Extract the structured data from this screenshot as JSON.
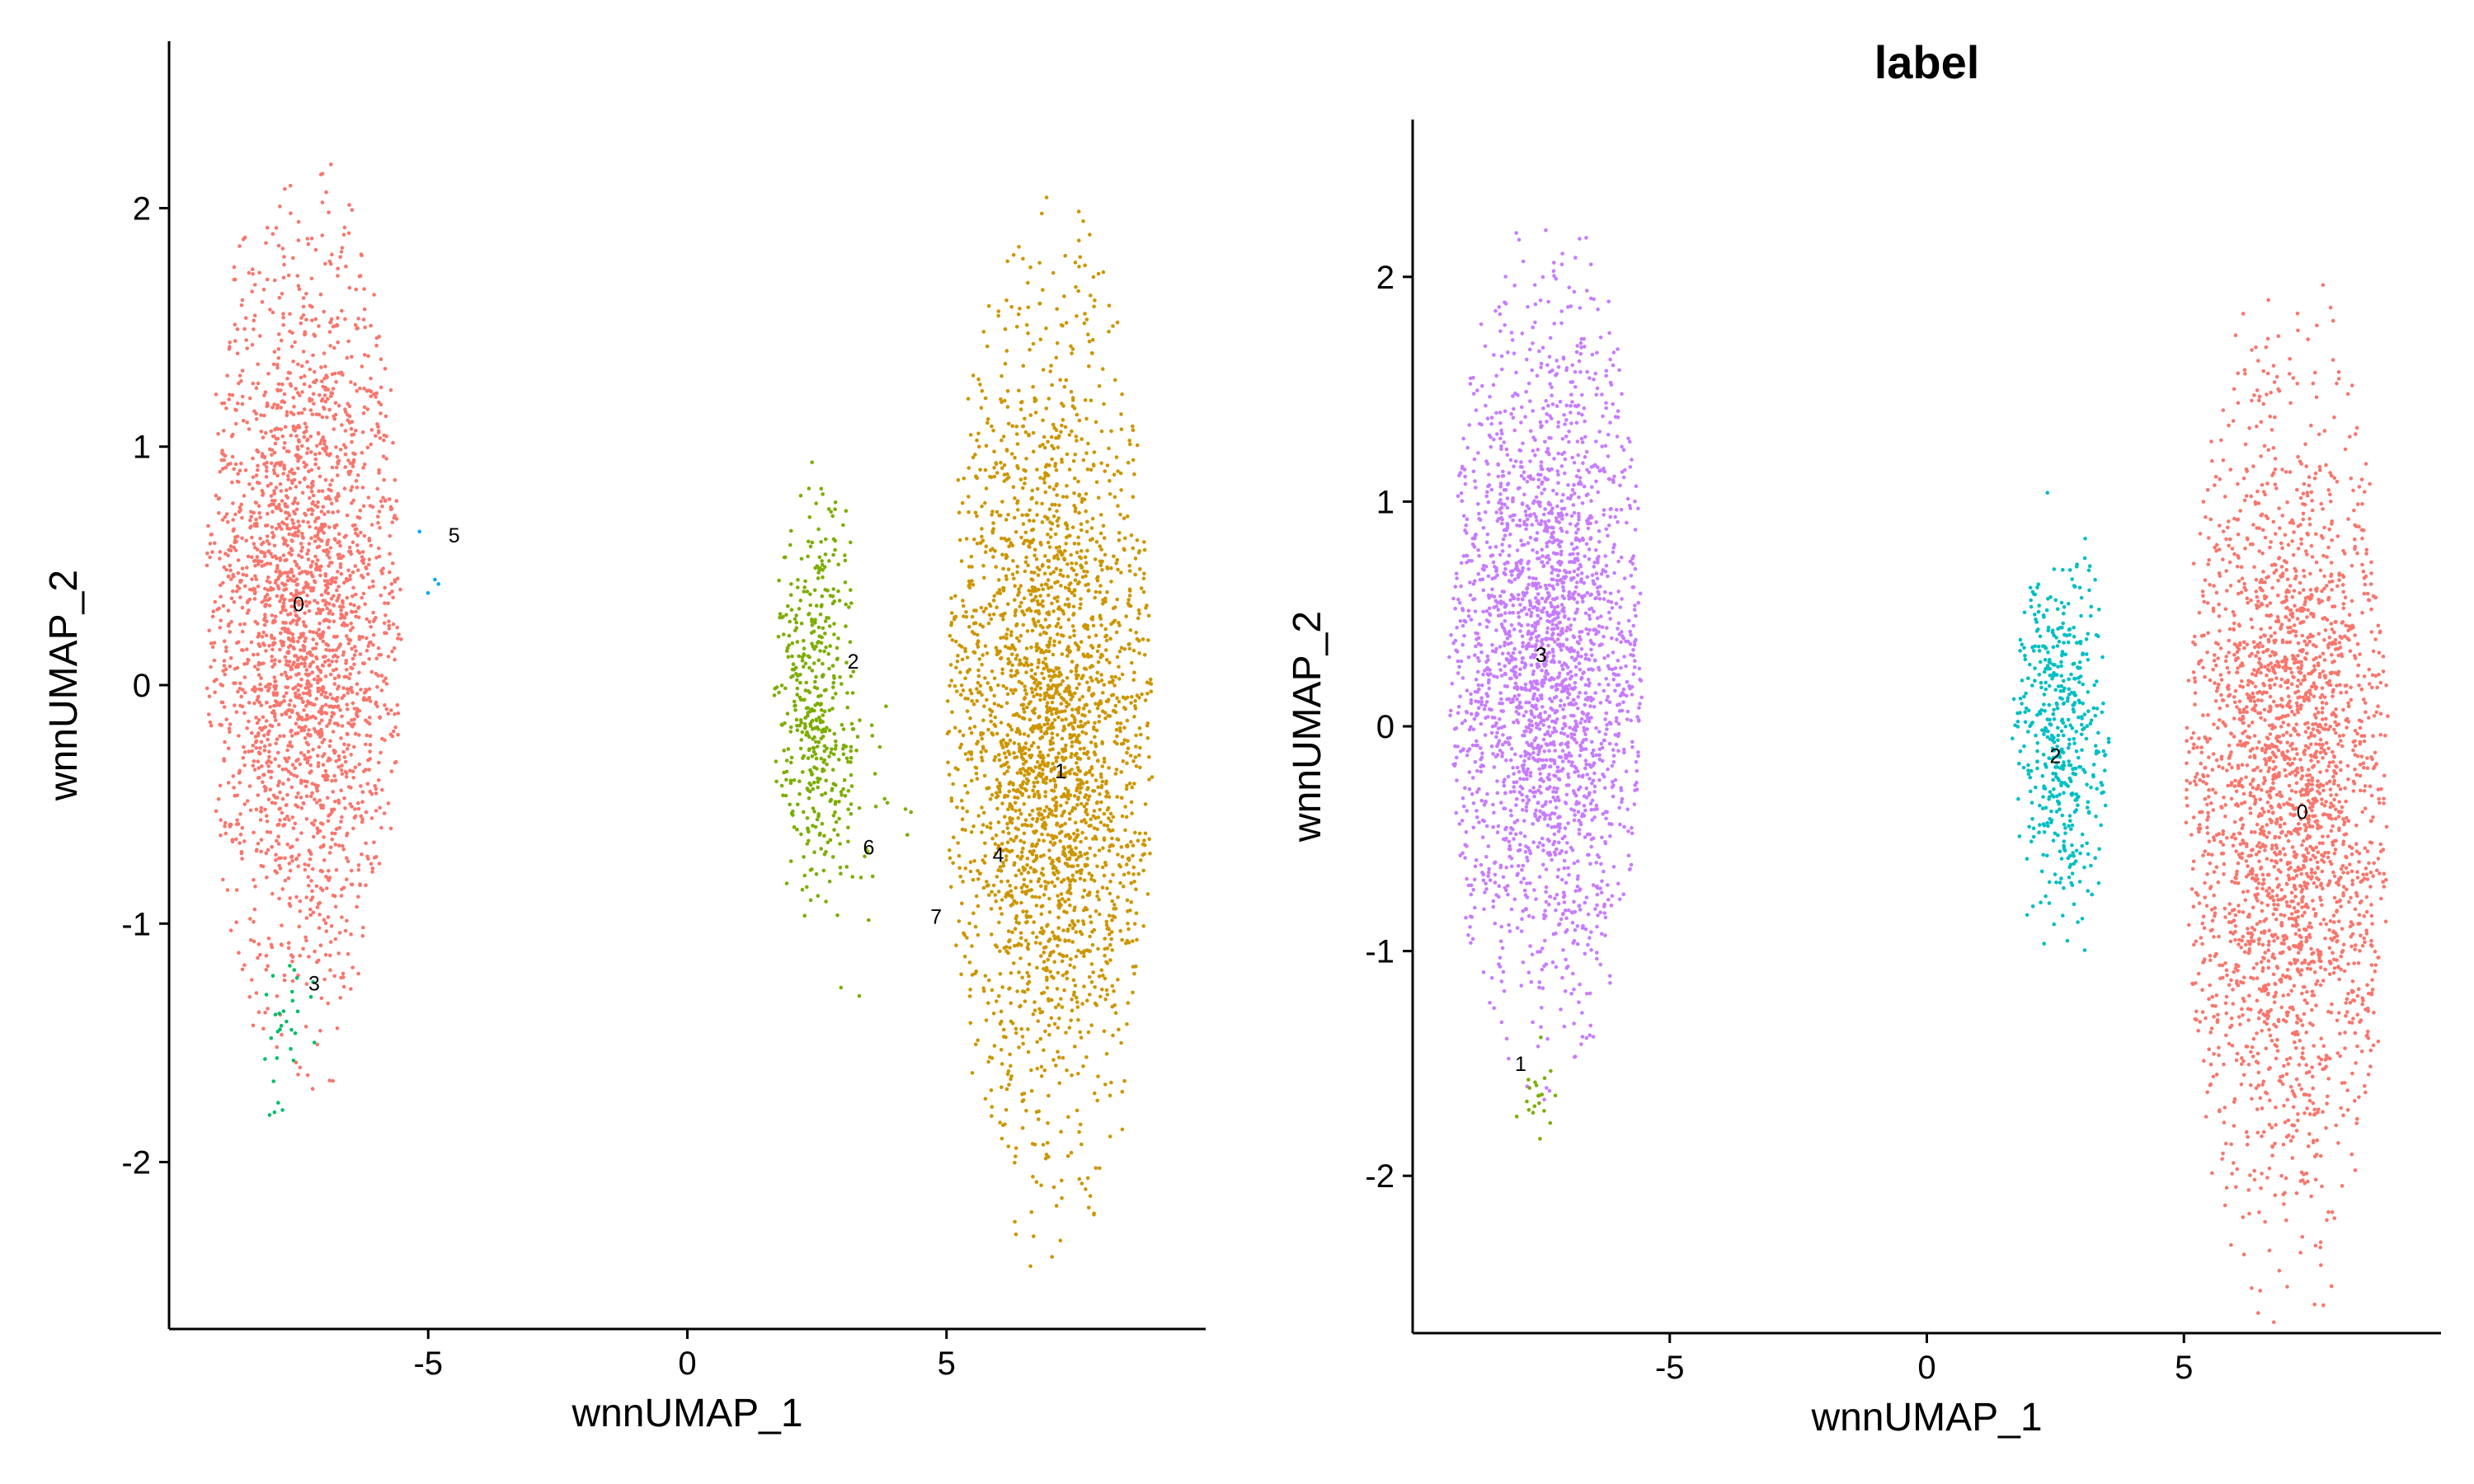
{
  "chart_data": [
    {
      "type": "scatter",
      "title": "",
      "xlabel": "wnnUMAP_1",
      "ylabel": "wnnUMAP_2",
      "xlim": [
        -10,
        10
      ],
      "ylim": [
        -2.7,
        2.7
      ],
      "xticks": [
        -5,
        0,
        5
      ],
      "yticks": [
        -2,
        -1,
        0,
        1,
        2
      ],
      "grid": false,
      "legend": "none",
      "groups": [
        {
          "name": "0",
          "color": "#F8766D",
          "center": [
            -7.4,
            0.3
          ],
          "spread": [
            0.9,
            0.72
          ],
          "n": 2400
        },
        {
          "name": "3",
          "color": "#00BE67",
          "center": [
            -7.7,
            -1.45
          ],
          "spread": [
            0.3,
            0.15
          ],
          "n": 30
        },
        {
          "name": "2",
          "color": "#7CAE00",
          "center": [
            2.5,
            -0.05
          ],
          "spread": [
            0.4,
            0.38
          ],
          "n": 450
        },
        {
          "name": "6",
          "color": "#7CAE00",
          "center": [
            3.3,
            -0.6
          ],
          "spread": [
            0.5,
            0.25
          ],
          "n": 30
        },
        {
          "name": "1",
          "color": "#CD9600",
          "center": [
            7.0,
            -0.2
          ],
          "spread": [
            0.95,
            0.8
          ],
          "n": 2600
        },
        {
          "name": "5",
          "color": "#00A9FF",
          "center": [
            -5.0,
            0.5
          ],
          "spread": [
            0.15,
            0.15
          ],
          "n": 4
        }
      ],
      "labels": [
        {
          "text": "0",
          "x": -7.5,
          "y": 0.34
        },
        {
          "text": "5",
          "x": -4.5,
          "y": 0.63
        },
        {
          "text": "2",
          "x": 3.2,
          "y": 0.1
        },
        {
          "text": "1",
          "x": 7.2,
          "y": -0.36
        },
        {
          "text": "6",
          "x": 3.5,
          "y": -0.68
        },
        {
          "text": "4",
          "x": 6.0,
          "y": -0.71
        },
        {
          "text": "7",
          "x": 4.8,
          "y": -0.97
        },
        {
          "text": "3",
          "x": -7.2,
          "y": -1.25
        }
      ]
    },
    {
      "type": "scatter",
      "title": "label",
      "xlabel": "wnnUMAP_1",
      "ylabel": "wnnUMAP_2",
      "xlim": [
        -10,
        10
      ],
      "ylim": [
        -2.7,
        2.7
      ],
      "xticks": [
        -5,
        0,
        5
      ],
      "yticks": [
        -2,
        -1,
        0,
        1,
        2
      ],
      "grid": false,
      "legend": "none",
      "groups": [
        {
          "name": "3",
          "color": "#C77CFF",
          "center": [
            -7.4,
            0.3
          ],
          "spread": [
            0.9,
            0.72
          ],
          "n": 2400
        },
        {
          "name": "1",
          "color": "#7CAE00",
          "center": [
            -7.6,
            -1.6
          ],
          "spread": [
            0.25,
            0.1
          ],
          "n": 20
        },
        {
          "name": "2",
          "color": "#00BFC4",
          "center": [
            2.6,
            -0.05
          ],
          "spread": [
            0.45,
            0.4
          ],
          "n": 500
        },
        {
          "name": "0",
          "color": "#F8766D",
          "center": [
            7.0,
            -0.3
          ],
          "spread": [
            0.95,
            0.85
          ],
          "n": 2600
        }
      ],
      "labels": [
        {
          "text": "3",
          "x": -7.5,
          "y": 0.32
        },
        {
          "text": "2",
          "x": 2.5,
          "y": -0.13
        },
        {
          "text": "0",
          "x": 7.3,
          "y": -0.38
        },
        {
          "text": "1",
          "x": -7.9,
          "y": -1.5
        }
      ]
    }
  ]
}
